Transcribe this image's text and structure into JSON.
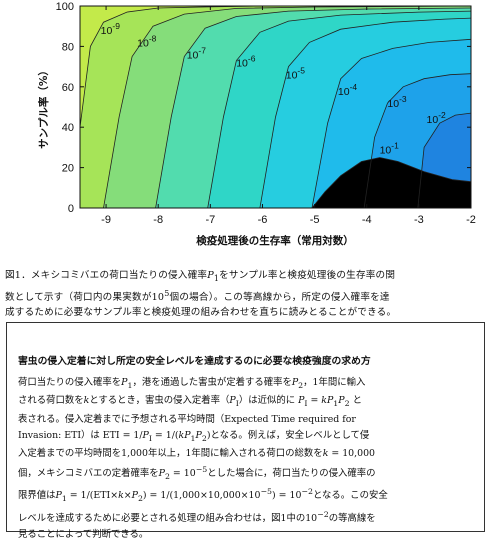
{
  "chart_data": {
    "type": "contour",
    "xlabel": "検疫処理後の生存率（常用対数）",
    "ylabel": "サンプル率（%）",
    "xlim": [
      -9.5,
      -2
    ],
    "ylim": [
      0,
      100
    ],
    "x_ticks": [
      "-9",
      "-8",
      "-7",
      "-6",
      "-5",
      "-4",
      "-3",
      "-2"
    ],
    "x_tick_values": [
      -9,
      -8,
      -7,
      -6,
      -5,
      -4,
      -3,
      -2
    ],
    "y_ticks": [
      "0",
      "20",
      "40",
      "60",
      "80",
      "100"
    ],
    "y_tick_values": [
      0,
      20,
      40,
      60,
      80,
      100
    ],
    "fill_colors": [
      "#c3ea4a",
      "#a6e458",
      "#85dd7a",
      "#52dcae",
      "#2fd6c7",
      "#26cde0",
      "#1fbbeb",
      "#1ea2ea",
      "#1f84e0"
    ],
    "contours": [
      {
        "label": "10",
        "exponent": "-9",
        "points": [
          [
            -9.5,
            40
          ],
          [
            -9.3,
            80
          ],
          [
            -9.05,
            92
          ],
          [
            -8.6,
            97
          ],
          [
            -8,
            99
          ],
          [
            -7,
            99.6
          ],
          [
            -6,
            100
          ]
        ]
      },
      {
        "label": "10",
        "exponent": "-8",
        "points": [
          [
            -9.05,
            0
          ],
          [
            -8.75,
            45
          ],
          [
            -8.5,
            75
          ],
          [
            -8.1,
            90
          ],
          [
            -7.5,
            96
          ],
          [
            -6.5,
            98.8
          ],
          [
            -5,
            99.5
          ],
          [
            -2,
            100
          ]
        ]
      },
      {
        "label": "10",
        "exponent": "-7",
        "points": [
          [
            -8.05,
            0
          ],
          [
            -7.75,
            45
          ],
          [
            -7.5,
            75
          ],
          [
            -7.1,
            89
          ],
          [
            -6.5,
            94.8
          ],
          [
            -5.5,
            97.5
          ],
          [
            -4,
            98.5
          ],
          [
            -2,
            99
          ]
        ]
      },
      {
        "label": "10",
        "exponent": "-6",
        "points": [
          [
            -7.05,
            0
          ],
          [
            -6.75,
            45
          ],
          [
            -6.5,
            73
          ],
          [
            -6.05,
            87
          ],
          [
            -5.5,
            92.5
          ],
          [
            -4.5,
            95.5
          ],
          [
            -3,
            97
          ],
          [
            -2,
            97.5
          ]
        ]
      },
      {
        "label": "10",
        "exponent": "-5",
        "points": [
          [
            -6.05,
            0
          ],
          [
            -5.75,
            45
          ],
          [
            -5.5,
            70
          ],
          [
            -5.1,
            82
          ],
          [
            -4.5,
            88.5
          ],
          [
            -3.5,
            92
          ],
          [
            -2.5,
            93.5
          ],
          [
            -2,
            94
          ]
        ]
      },
      {
        "label": "10",
        "exponent": "-4",
        "points": [
          [
            -5.05,
            0
          ],
          [
            -4.75,
            42
          ],
          [
            -4.5,
            64
          ],
          [
            -4.1,
            74
          ],
          [
            -3.5,
            79
          ],
          [
            -2.8,
            82
          ],
          [
            -2,
            83.5
          ]
        ]
      },
      {
        "label": "10",
        "exponent": "-3",
        "points": [
          [
            -4.05,
            0
          ],
          [
            -3.85,
            35
          ],
          [
            -3.6,
            52
          ],
          [
            -3.3,
            60
          ],
          [
            -2.9,
            64
          ],
          [
            -2.4,
            66
          ],
          [
            -2,
            66.5
          ]
        ]
      },
      {
        "label": "10",
        "exponent": "-2",
        "points": [
          [
            -3.02,
            0
          ],
          [
            -2.9,
            30
          ],
          [
            -2.6,
            42
          ],
          [
            -2.3,
            46
          ],
          [
            -2,
            47
          ]
        ]
      },
      {
        "label": "10",
        "exponent": "-1",
        "points": [
          [
            -2,
            13
          ],
          [
            -2.35,
            14
          ],
          [
            -2.9,
            18
          ],
          [
            -3.4,
            23
          ],
          [
            -3.75,
            25
          ],
          [
            -4.1,
            23
          ],
          [
            -4.5,
            16
          ],
          [
            -4.8,
            8
          ],
          [
            -5.05,
            0
          ]
        ]
      }
    ]
  },
  "caption": {
    "line1_prefix": "図1．メキシコミバエの荷口当たりの侵入確率",
    "line1_var": "P",
    "line1_sub": "1",
    "line1_suffix": "をサンプル率と検疫処理後の生存率の関",
    "line2_prefix": "数として示す（荷口内の果実数が10",
    "line2_sup": "5",
    "line2_suffix": "個の場合）。この等高線から，所定の侵入確率を達",
    "line3": "成するために必要なサンプル率と検疫処理の組み合わせを直ちに読みとることができる。"
  },
  "box": {
    "title": "害虫の侵入定着に対し所定の安全レベルを達成するのに必要な検疫強度の求め方",
    "l1a": "荷口当たりの侵入確率を",
    "l1b": "，港を通過した害虫が定着する確率を",
    "l1c": "，1年間に輸入",
    "l2a": "される荷口数を",
    "l2b": "とするとき，害虫の侵入定着率（",
    "l2c": "）は近似的に",
    "l2d": "と",
    "l3": "表される。侵入定着までに予想される平均時間（Expected Time required for",
    "l4a": "Invasion: ETI）は ETI = 1/",
    "l4b": " = 1/(",
    "l4c": ")となる。例えば，安全レベルとして侵",
    "l5": "入定着までの平均時間を1,000年以上，1年間に輸入される荷口の総数を",
    "l5b": " = 10,000",
    "l6a": "個，メキシコミバエの定着確率を",
    "l6b": " = 10",
    "l6c": "とした場合に，荷口当たりの侵入確率の",
    "l7a": "限界値は",
    "l7b": " = 1/(ETI×",
    "l7c": "×",
    "l7d": ") = 1/(1,000×10,000×10",
    "l7e": ") = 10",
    "l7f": "となる。この安全",
    "l8a": "レベルを達成するために必要とされる処理の組み合わせは，図1中の10",
    "l8b": "の等高線を",
    "l9": "見ることによって判断できる。",
    "v_P": "P",
    "v_k": "k",
    "v_kk": "k",
    "v_kP1P2": "kP",
    "s1": "1",
    "s2": "2",
    "s_l": "I",
    "e_m5": "−5",
    "e_m2": "−2",
    "eq": " = "
  }
}
